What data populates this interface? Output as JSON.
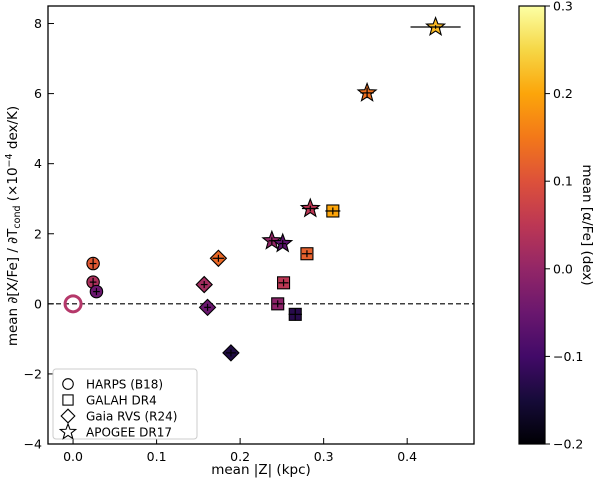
{
  "chart_data": {
    "type": "scatter",
    "xlabel": "mean |Z| (kpc)",
    "ylabel_prefix": "mean ∂[X/Fe] / ∂T",
    "ylabel_sub": "cond",
    "ylabel_middle": " (×10",
    "ylabel_sup": "−4",
    "ylabel_suffix": " dex/K)",
    "xlim": [
      -0.03,
      0.48
    ],
    "ylim": [
      -4,
      8.5
    ],
    "xticks": [
      0.0,
      0.1,
      0.2,
      0.3,
      0.4
    ],
    "xtick_labels": [
      "0.0",
      "0.1",
      "0.2",
      "0.3",
      "0.4"
    ],
    "yticks": [
      -4,
      -2,
      0,
      2,
      4,
      6,
      8
    ],
    "ytick_labels": [
      "−4",
      "−2",
      "0",
      "2",
      "4",
      "6",
      "8"
    ],
    "reference_line_y": 0,
    "colorbar": {
      "label": "mean [α/Fe] (dex)",
      "range": [
        -0.2,
        0.3
      ],
      "ticks": [
        -0.2,
        -0.1,
        0.0,
        0.1,
        0.2,
        0.3
      ],
      "tick_labels": [
        "−0.2",
        "−0.1",
        "0.0",
        "0.1",
        "0.2",
        "0.3"
      ],
      "colormap": "inferno"
    },
    "legend_position": "lower-left",
    "reference_marker": {
      "x": 0.0,
      "y": 0.0,
      "color": "#b5386a"
    },
    "series": [
      {
        "name": "HARPS (B18)",
        "marker": "circle",
        "points": [
          {
            "x": 0.024,
            "y": 1.15,
            "alpha": 0.11,
            "xerr": 0.004,
            "yerr": 0.15
          },
          {
            "x": 0.024,
            "y": 0.62,
            "alpha": 0.03,
            "xerr": 0.004,
            "yerr": 0.12
          },
          {
            "x": 0.028,
            "y": 0.35,
            "alpha": -0.05,
            "xerr": 0.004,
            "yerr": 0.1
          }
        ]
      },
      {
        "name": "GALAH DR4",
        "marker": "square",
        "points": [
          {
            "x": 0.311,
            "y": 2.65,
            "alpha": 0.2,
            "xerr": 0.009,
            "yerr": 0.1
          },
          {
            "x": 0.28,
            "y": 1.43,
            "alpha": 0.12,
            "xerr": 0.006,
            "yerr": 0.1
          },
          {
            "x": 0.252,
            "y": 0.6,
            "alpha": 0.05,
            "xerr": 0.006,
            "yerr": 0.1
          },
          {
            "x": 0.245,
            "y": 0.0,
            "alpha": -0.01,
            "xerr": 0.006,
            "yerr": 0.1
          },
          {
            "x": 0.266,
            "y": -0.3,
            "alpha": -0.13,
            "xerr": 0.008,
            "yerr": 0.18
          }
        ]
      },
      {
        "name": "Gaia RVS (R24)",
        "marker": "diamond",
        "points": [
          {
            "x": 0.174,
            "y": 1.3,
            "alpha": 0.13,
            "xerr": 0.007,
            "yerr": 0.1
          },
          {
            "x": 0.157,
            "y": 0.55,
            "alpha": 0.02,
            "xerr": 0.004,
            "yerr": 0.1
          },
          {
            "x": 0.161,
            "y": -0.1,
            "alpha": -0.05,
            "xerr": 0.004,
            "yerr": 0.1
          },
          {
            "x": 0.189,
            "y": -1.4,
            "alpha": -0.14,
            "xerr": 0.006,
            "yerr": 0.1
          }
        ]
      },
      {
        "name": "APOGEE DR17",
        "marker": "star",
        "points": [
          {
            "x": 0.434,
            "y": 7.9,
            "alpha": 0.22,
            "xerr": 0.03,
            "yerr": 0.05
          },
          {
            "x": 0.352,
            "y": 6.02,
            "alpha": 0.14,
            "xerr": 0.008,
            "yerr": 0.15
          },
          {
            "x": 0.284,
            "y": 2.72,
            "alpha": 0.05,
            "xerr": 0.01,
            "yerr": 0.08
          },
          {
            "x": 0.238,
            "y": 1.8,
            "alpha": 0.0,
            "xerr": 0.004,
            "yerr": 0.1
          },
          {
            "x": 0.251,
            "y": 1.72,
            "alpha": -0.07,
            "xerr": 0.004,
            "yerr": 0.1
          }
        ]
      }
    ]
  }
}
